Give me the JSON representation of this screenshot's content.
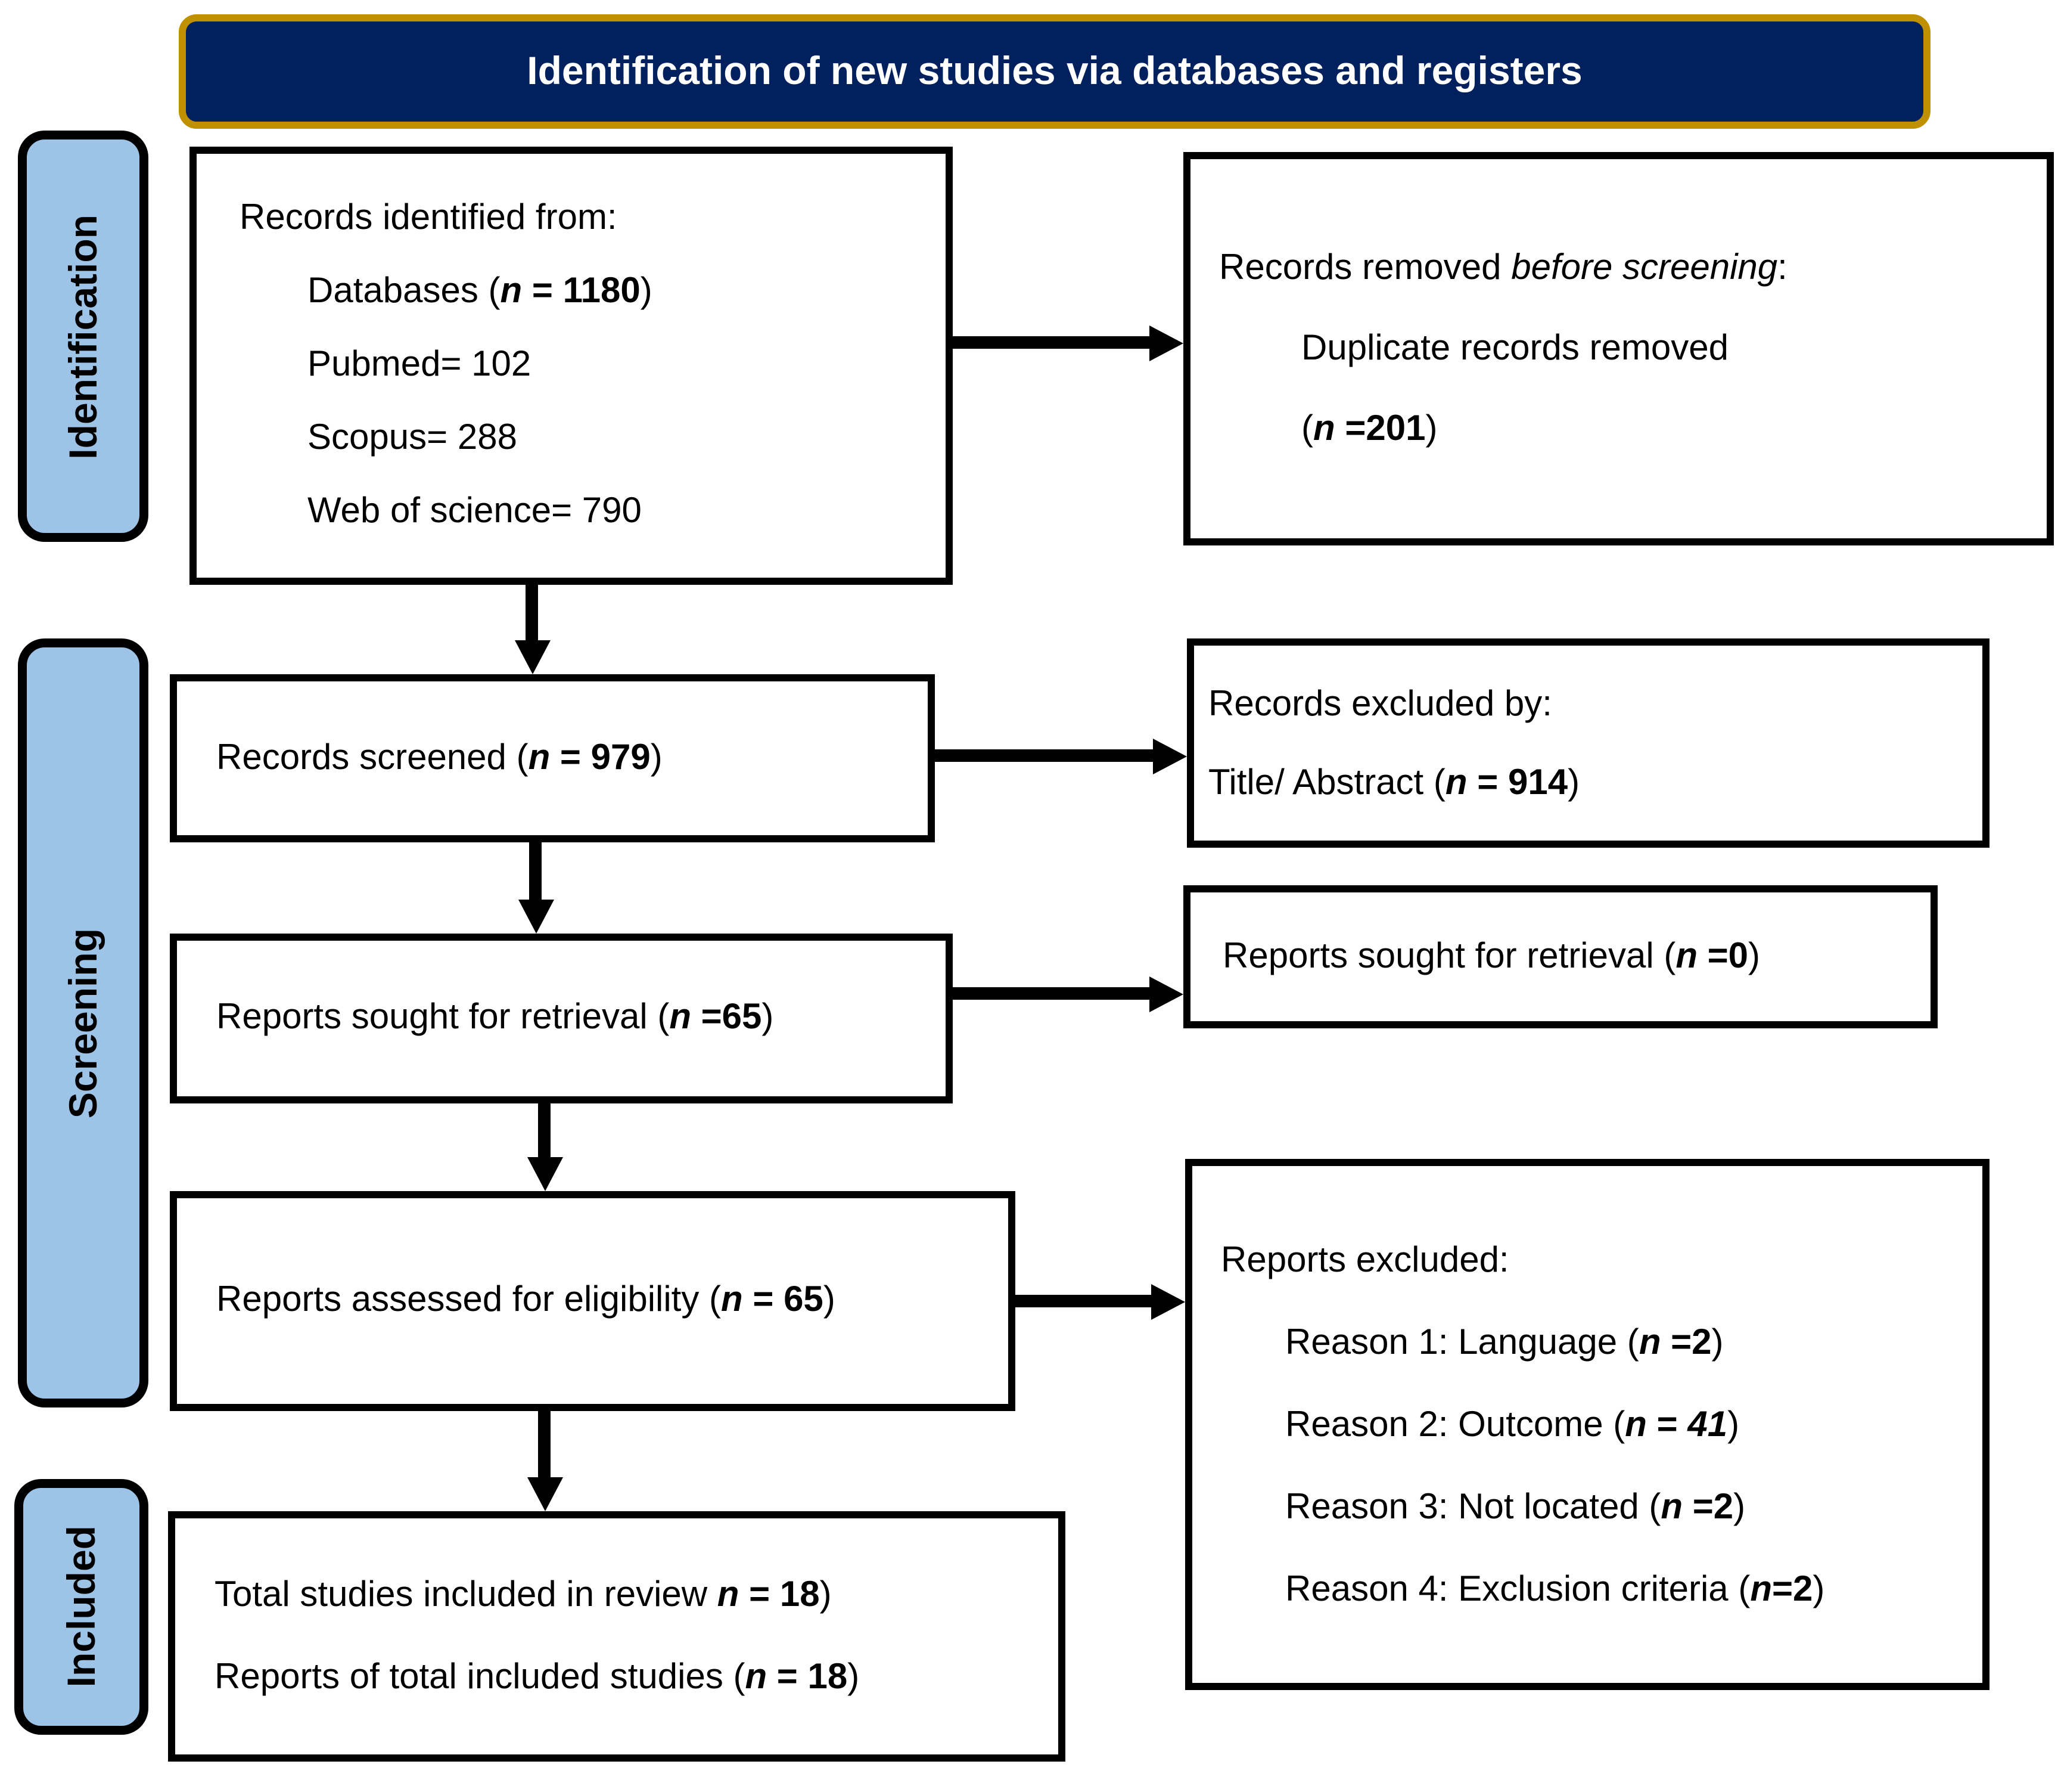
{
  "title": {
    "text": "Identification of new studies via databases and registers"
  },
  "colors": {
    "navy": "#01215E",
    "gold": "#BF9000",
    "light_blue": "#9DC3E6",
    "box_border": "#000000",
    "box_fill": "#FFFFFF",
    "title_text": "#FFFFFF"
  },
  "stage_labels": {
    "identification": "Identification",
    "screening": "Screening",
    "included": "Included"
  },
  "boxes": {
    "records_identified": {
      "lines": [
        [
          {
            "t": "Records identified from:"
          }
        ],
        [
          {
            "t": "Databases ("
          },
          {
            "t": "n",
            "b": true,
            "i": true
          },
          {
            "t": " = 1180",
            "b": true
          },
          {
            "t": ")"
          }
        ],
        [
          {
            "t": "Pubmed= 102"
          }
        ],
        [
          {
            "t": "Scopus= 288"
          }
        ],
        [
          {
            "t": "Web of science= 790"
          }
        ]
      ]
    },
    "records_removed": {
      "lines": [
        [
          {
            "t": "Records removed "
          },
          {
            "t": "before screening",
            "i": true
          },
          {
            "t": ":"
          }
        ],
        [
          {
            "t": "Duplicate records removed"
          }
        ],
        [
          {
            "t": "("
          },
          {
            "t": "n",
            "b": true,
            "i": true
          },
          {
            "t": " =201",
            "b": true
          },
          {
            "t": ")"
          }
        ]
      ]
    },
    "records_screened": {
      "lines": [
        [
          {
            "t": "Records screened ("
          },
          {
            "t": "n",
            "b": true,
            "i": true
          },
          {
            "t": " = 979",
            "b": true
          },
          {
            "t": ")"
          }
        ]
      ]
    },
    "records_excluded": {
      "lines": [
        [
          {
            "t": "Records excluded by:"
          }
        ],
        [
          {
            "t": "Title/ Abstract ("
          },
          {
            "t": "n",
            "b": true,
            "i": true
          },
          {
            "t": " = 914",
            "b": true
          },
          {
            "t": ")"
          }
        ]
      ]
    },
    "reports_sought": {
      "lines": [
        [
          {
            "t": "Reports sought for retrieval ("
          },
          {
            "t": "n",
            "b": true,
            "i": true
          },
          {
            "t": " =65",
            "b": true
          },
          {
            "t": ")"
          }
        ]
      ]
    },
    "reports_not_retrieved": {
      "lines": [
        [
          {
            "t": "Reports sought for retrieval ("
          },
          {
            "t": "n",
            "b": true,
            "i": true
          },
          {
            "t": " =0",
            "b": true
          },
          {
            "t": ")"
          }
        ]
      ]
    },
    "reports_assessed": {
      "lines": [
        [
          {
            "t": "Reports assessed for eligibility ("
          },
          {
            "t": "n",
            "b": true,
            "i": true
          },
          {
            "t": " = 65",
            "b": true
          },
          {
            "t": ")"
          }
        ]
      ]
    },
    "reports_excluded": {
      "lines": [
        [
          {
            "t": "Reports excluded:"
          }
        ],
        [
          {
            "t": "Reason 1: Language ("
          },
          {
            "t": "n",
            "b": true,
            "i": true
          },
          {
            "t": " =2",
            "b": true
          },
          {
            "t": ")"
          }
        ],
        [
          {
            "t": "Reason 2: Outcome ("
          },
          {
            "t": "n",
            "b": true,
            "i": true
          },
          {
            "t": " = ",
            "b": true
          },
          {
            "t": "41",
            "b": true,
            "i": true
          },
          {
            "t": ")"
          }
        ],
        [
          {
            "t": "Reason 3: Not located ("
          },
          {
            "t": "n",
            "b": true,
            "i": true
          },
          {
            "t": " =2",
            "b": true
          },
          {
            "t": ")"
          }
        ],
        [
          {
            "t": "Reason 4: Exclusion criteria ("
          },
          {
            "t": "n",
            "b": true,
            "i": true
          },
          {
            "t": "=2",
            "b": true
          },
          {
            "t": ")"
          }
        ]
      ]
    },
    "included_studies": {
      "lines": [
        [
          {
            "t": "Total studies included in review "
          },
          {
            "t": "n",
            "b": true,
            "i": true
          },
          {
            "t": " = 18",
            "b": true
          },
          {
            "t": ")"
          }
        ],
        [
          {
            "t": "Reports of total included studies ("
          },
          {
            "t": "n",
            "b": true,
            "i": true
          },
          {
            "t": " = 18",
            "b": true
          },
          {
            "t": ")"
          }
        ]
      ]
    }
  }
}
